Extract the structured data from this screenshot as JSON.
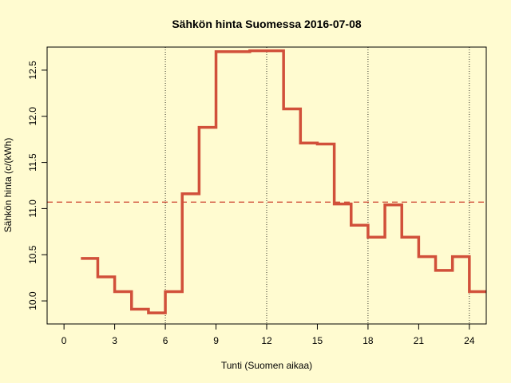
{
  "chart_data": {
    "type": "line",
    "title": "Sähkön hinta Suomessa 2016-07-08",
    "xlabel": "Tunti (Suomen aikaa)",
    "ylabel": "Sähkön hinta (c/(kWh)",
    "xlim": [
      -1,
      25
    ],
    "ylim": [
      9.75,
      12.75
    ],
    "x_ticks": [
      0,
      3,
      6,
      9,
      12,
      15,
      18,
      21,
      24
    ],
    "y_ticks": [
      10.0,
      10.5,
      11.0,
      11.5,
      12.0,
      12.5
    ],
    "vlines": [
      6,
      12,
      18,
      24
    ],
    "mean_line": 11.07,
    "series": [
      {
        "style": "step",
        "color": "#d1503a",
        "x": [
          1,
          2,
          3,
          4,
          5,
          6,
          7,
          8,
          9,
          10,
          11,
          12,
          13,
          14,
          15,
          16,
          17,
          18,
          19,
          20,
          21,
          22,
          23,
          24,
          25
        ],
        "values": [
          10.46,
          10.26,
          10.1,
          9.91,
          9.87,
          10.1,
          11.16,
          11.88,
          12.7,
          12.7,
          12.71,
          12.71,
          12.08,
          11.71,
          11.7,
          11.05,
          10.82,
          10.69,
          11.04,
          10.69,
          10.48,
          10.33,
          10.48,
          10.1,
          10.1
        ]
      }
    ],
    "colors": {
      "background": "#fffbd0",
      "series": "#d1503a",
      "mean_line": "#d1503a",
      "frame": "#000000"
    }
  }
}
